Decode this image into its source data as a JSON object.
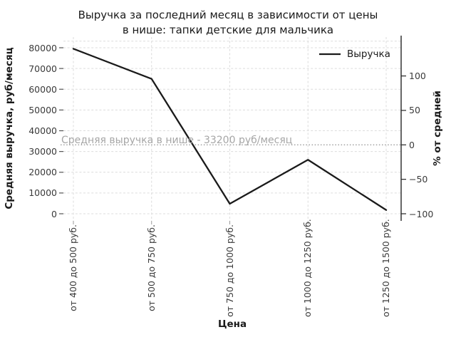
{
  "chart_data": {
    "type": "line",
    "title_lines": [
      "Выручка за последний месяц в зависимости от цены",
      "в нише: тапки детские для мальчика"
    ],
    "xlabel": "Цена",
    "ylabel_left": "Средняя выручка, руб/месяц",
    "ylabel_right": "% от средней",
    "legend": {
      "position": "upper right",
      "entries": [
        "Выручка"
      ]
    },
    "categories": [
      "от 400 до 500 руб.",
      "от 500 до 750 руб.",
      "от 750 до 1000 руб.",
      "от 1000 до 1250 руб.",
      "от 1250 до 1500 руб."
    ],
    "series": [
      {
        "name": "Выручка",
        "values": [
          79500,
          65000,
          4800,
          26000,
          1800
        ],
        "color": "#1a1a1a"
      }
    ],
    "average_line": {
      "value": 33200,
      "label": "Средняя выручка в нише - 33200 руб/месяц",
      "style": "dotted",
      "color": "#9a9a9a"
    },
    "y_left": {
      "min": 0,
      "max": 80000,
      "ticks": [
        0,
        10000,
        20000,
        30000,
        40000,
        50000,
        60000,
        70000,
        80000
      ],
      "tick_labels": [
        "0",
        "10000",
        "20000",
        "30000",
        "40000",
        "50000",
        "60000",
        "70000",
        "80000"
      ]
    },
    "y_right": {
      "unit": "%",
      "relative_to": 33200,
      "ticks": [
        -100,
        -50,
        0,
        50,
        100
      ],
      "tick_labels": [
        "−100",
        "−50",
        "0",
        "50",
        "100"
      ]
    },
    "grid": true,
    "colors": {
      "line": "#1a1a1a",
      "grid": "#dcdcdc",
      "spine": "#262626",
      "tick": "#555555",
      "annotation": "#a6a6a6",
      "average": "#9a9a9a"
    }
  }
}
